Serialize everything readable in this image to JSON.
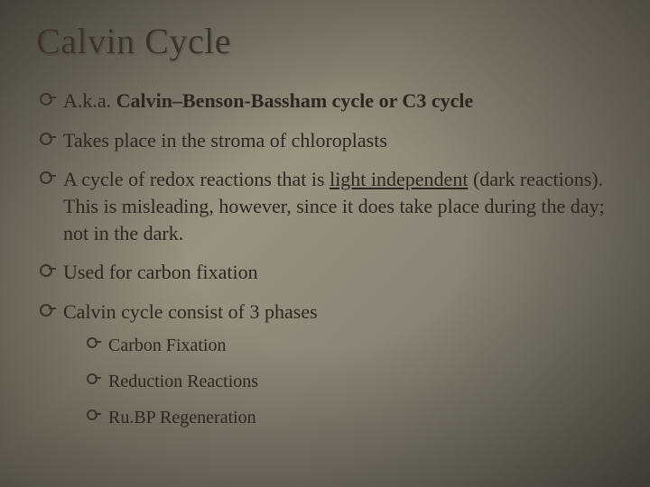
{
  "title": "Calvin Cycle",
  "bullets": [
    {
      "prefix": "A.k.a. ",
      "bold": "Calvin–Benson-Bassham cycle or C3 cycle",
      "suffix": ""
    },
    {
      "text": "Takes place in the stroma of chloroplasts"
    },
    {
      "prefix": "A cycle of redox reactions that is ",
      "underline": "light independent",
      "suffix": " (dark reactions). This is misleading, however, since it does take place during the day; not in the dark."
    },
    {
      "text": "Used for carbon fixation"
    },
    {
      "text": "Calvin cycle consist of 3 phases"
    }
  ],
  "sub_bullets": [
    {
      "text": "Carbon Fixation"
    },
    {
      "text": "Reduction Reactions"
    },
    {
      "text": "Ru.BP Regeneration"
    }
  ],
  "colors": {
    "text": "#2c2620",
    "title": "#3b332b",
    "bullet_ring": "#3b332b"
  },
  "typography": {
    "title_fontsize": 40,
    "bullet_fontsize": 22,
    "sub_bullet_fontsize": 20,
    "font_family": "Georgia, serif"
  }
}
